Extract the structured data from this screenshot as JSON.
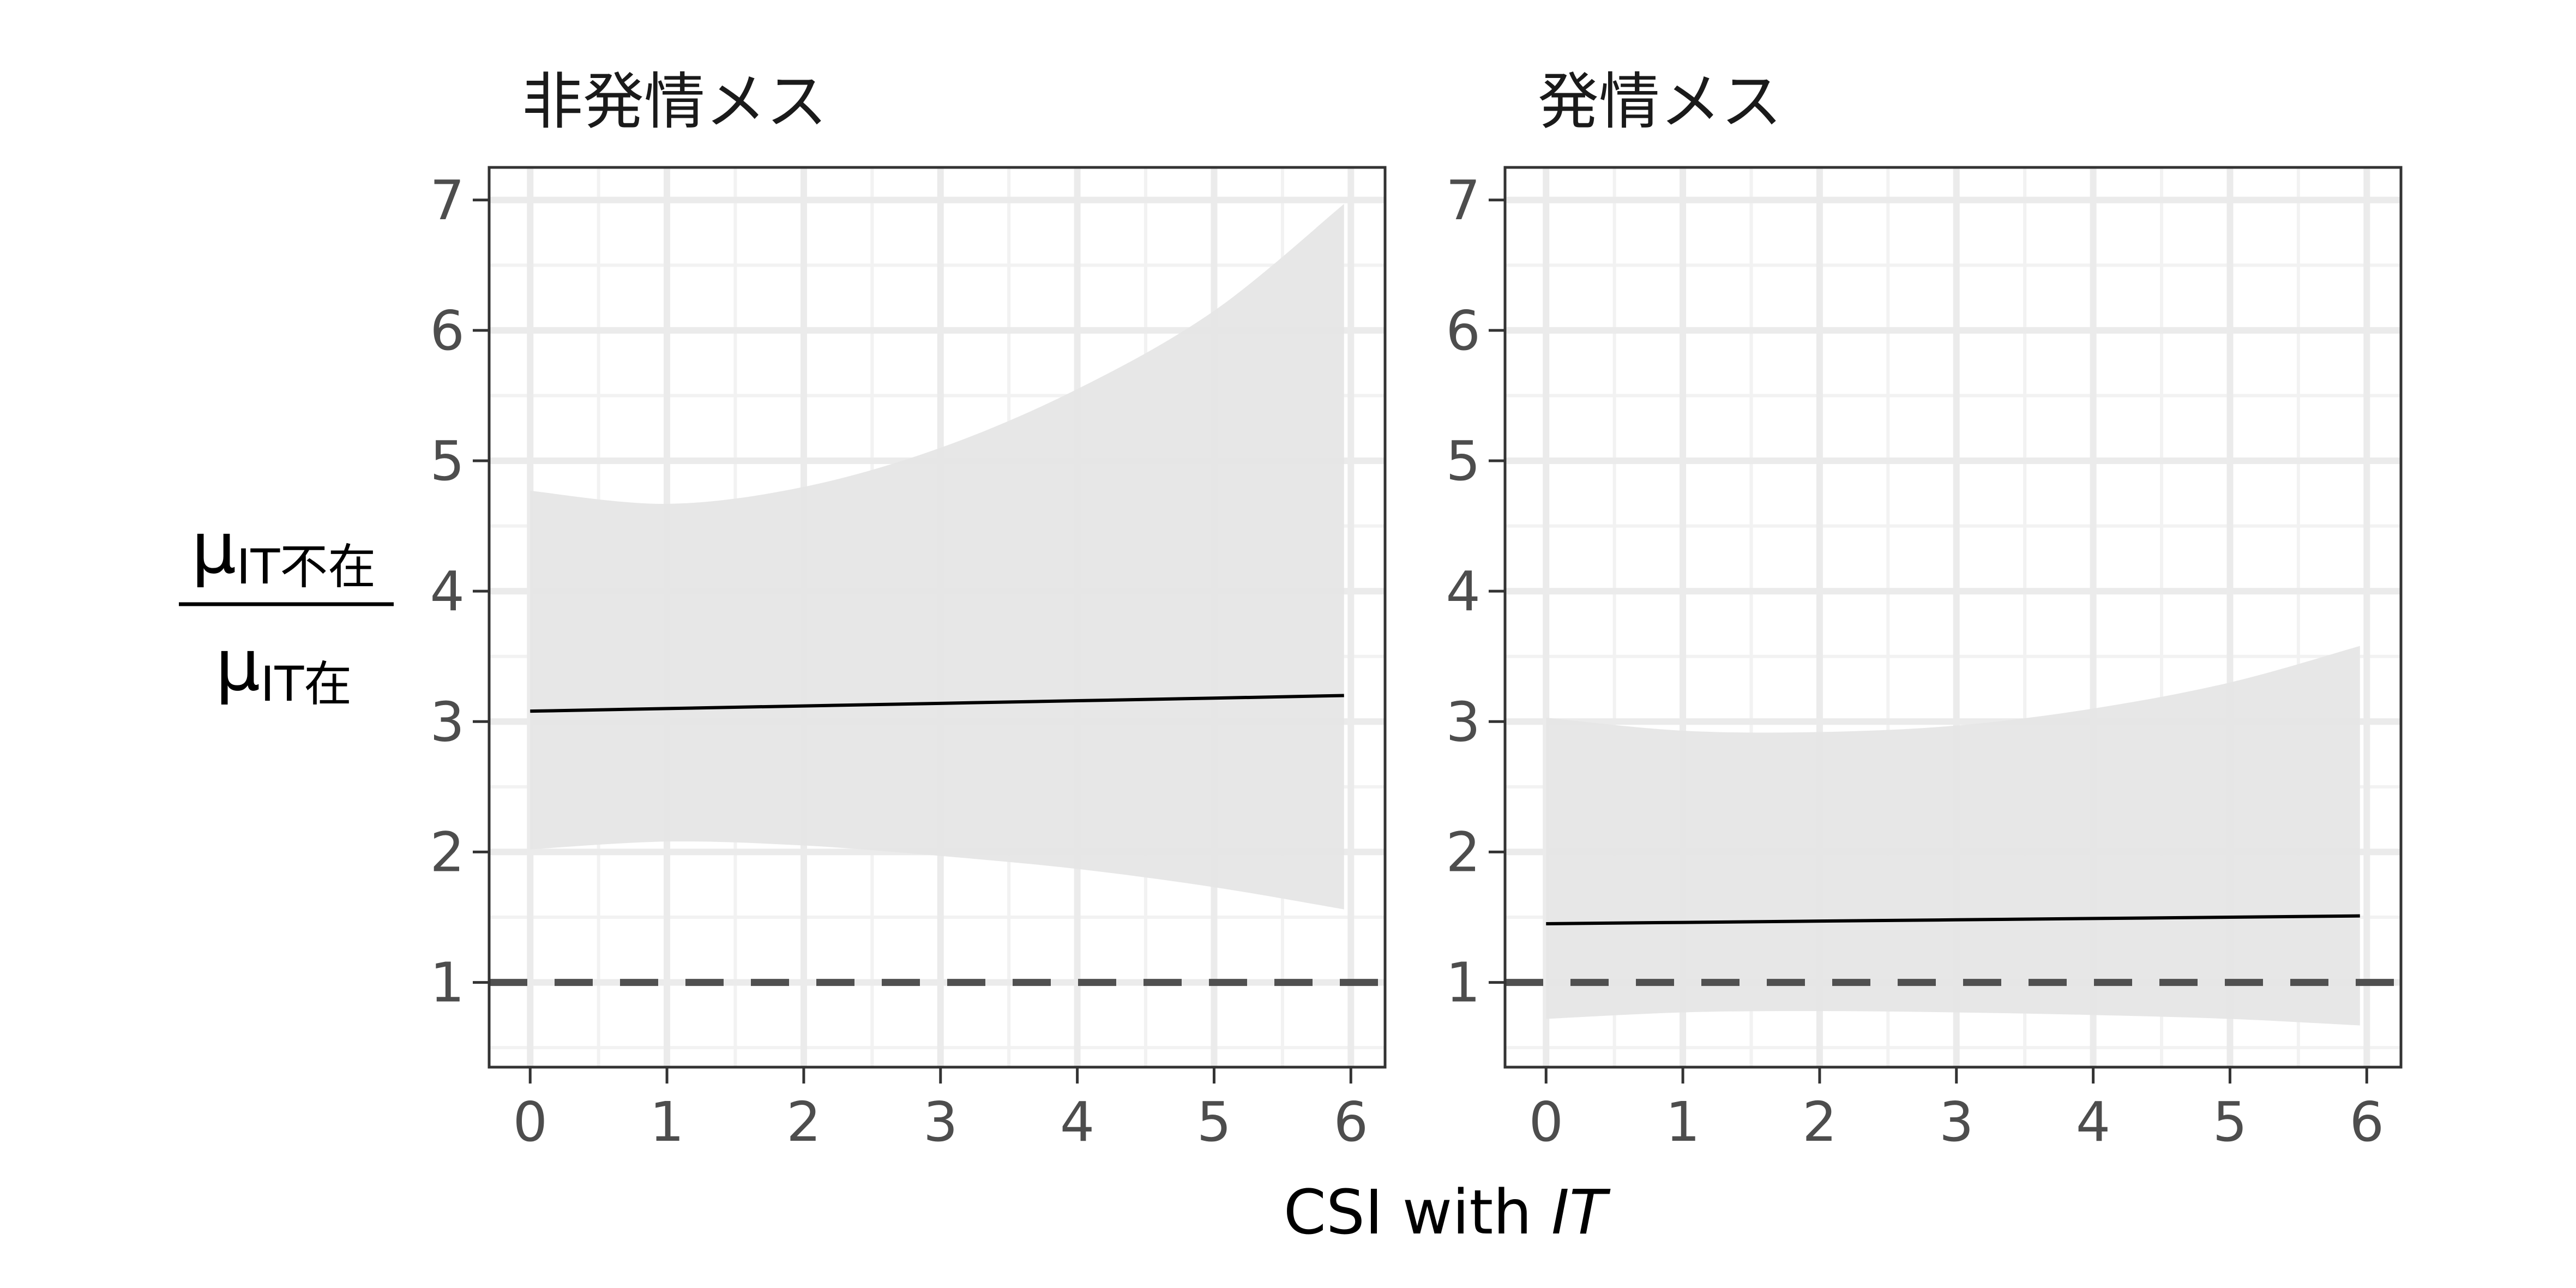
{
  "chart_data": {
    "type": "line",
    "x_axis_label": "CSI with ",
    "x_axis_label_italic": "IT",
    "y_axis_label": {
      "numerator": {
        "mu": "μ",
        "sub": "IT不在"
      },
      "denominator": {
        "mu": "μ",
        "sub": "IT在"
      }
    },
    "panels": [
      {
        "title": "非発情メス",
        "xlim": [
          -0.3,
          6.25
        ],
        "ylim": [
          0.35,
          7.25
        ],
        "x_ticks": [
          0,
          1,
          2,
          3,
          4,
          5,
          6
        ],
        "y_ticks": [
          1,
          2,
          3,
          4,
          5,
          6,
          7
        ],
        "reference_line": 1,
        "series": [
          {
            "x": [
              0,
              1,
              2,
              3,
              4,
              5,
              5.95
            ],
            "y": [
              3.08,
              3.1,
              3.12,
              3.14,
              3.16,
              3.18,
              3.2
            ],
            "ci_lower": [
              2.02,
              2.08,
              2.05,
              1.97,
              1.87,
              1.73,
              1.56
            ],
            "ci_upper": [
              4.77,
              4.67,
              4.8,
              5.1,
              5.55,
              6.15,
              6.97
            ]
          }
        ]
      },
      {
        "title": "発情メス",
        "xlim": [
          -0.3,
          6.25
        ],
        "ylim": [
          0.35,
          7.25
        ],
        "x_ticks": [
          0,
          1,
          2,
          3,
          4,
          5,
          6
        ],
        "y_ticks": [
          1,
          2,
          3,
          4,
          5,
          6,
          7
        ],
        "reference_line": 1,
        "series": [
          {
            "x": [
              0,
              1,
              2,
              3,
              4,
              5,
              5.95
            ],
            "y": [
              1.45,
              1.46,
              1.47,
              1.48,
              1.49,
              1.5,
              1.51
            ],
            "ci_lower": [
              0.72,
              0.77,
              0.78,
              0.77,
              0.75,
              0.72,
              0.67
            ],
            "ci_upper": [
              3.03,
              2.93,
              2.92,
              2.97,
              3.1,
              3.3,
              3.58
            ]
          }
        ]
      }
    ],
    "colors": {
      "ci_fill": "#e6e6e6",
      "line": "#000000",
      "reference_line": "#505050",
      "grid_major": "#ebebeb",
      "grid_minor": "#f2f2f2",
      "panel_border": "#333333",
      "tick_text": "#4d4d4d",
      "title_text": "#1a1a1a",
      "axis_title": "#000000"
    }
  }
}
